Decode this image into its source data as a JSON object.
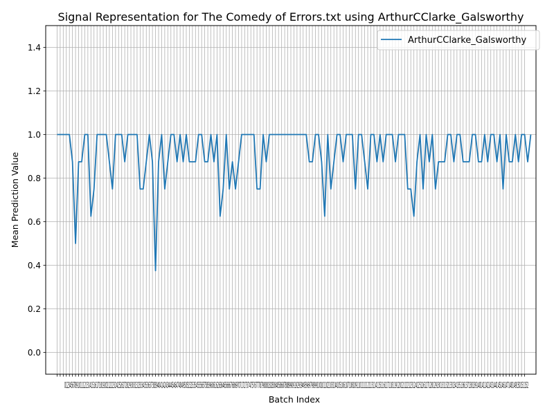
{
  "chart_data": {
    "type": "line",
    "title": "Signal Representation for The Comedy of Errors.txt using ArthurCClarke_Galsworthy",
    "xlabel": "Batch Index",
    "ylabel": "Mean Prediction Value",
    "xlim": [
      -3.7,
      155.7
    ],
    "ylim": [
      -0.1,
      1.5
    ],
    "yticks": [
      0.0,
      0.2,
      0.4,
      0.6,
      0.8,
      1.0,
      1.2,
      1.4
    ],
    "grid": true,
    "legend_position": "upper right",
    "x_tick_label_text": "0123456789101112131415161718192021222324252627282930313233343536373839404142434445464748495051525354555657585960616263646566676869707172737475767778798081828384858687888990919293949596979899100101102103104105106107108109110111112113114115116117118119120121122123124125126127128129130131132133134135136137138139140141142143144145146147148149150151152",
    "x_tick_positions": [
      0,
      1,
      2,
      3,
      4,
      5,
      6,
      7,
      8,
      9,
      10,
      11,
      12,
      13,
      14,
      15,
      16,
      17,
      18,
      19,
      20,
      21,
      22,
      23,
      24,
      25,
      26,
      27,
      28,
      29,
      30,
      31,
      32,
      33,
      34,
      35,
      36,
      37,
      38,
      39,
      40,
      41,
      42,
      43,
      44,
      45,
      46,
      47,
      48,
      49,
      50,
      51,
      52,
      53,
      54,
      55,
      56,
      57,
      58,
      59,
      60,
      61,
      62,
      63,
      64,
      65,
      66,
      67,
      68,
      69,
      70,
      71,
      72,
      73,
      74,
      75,
      76,
      77,
      78,
      79,
      80,
      81,
      82,
      83,
      84,
      85,
      86,
      87,
      88,
      89,
      90,
      91,
      92,
      93,
      94,
      95,
      96,
      97,
      98,
      99,
      100,
      101,
      102,
      103,
      104,
      105,
      106,
      107,
      108,
      109,
      110,
      111,
      112,
      113,
      114,
      115,
      116,
      117,
      118,
      119,
      120,
      121,
      122,
      123,
      124,
      125,
      126,
      127,
      128,
      129,
      130,
      131,
      132,
      133,
      134,
      135,
      136,
      137,
      138,
      139,
      140,
      141,
      142,
      143,
      144,
      145,
      146,
      147,
      148,
      149,
      150,
      151,
      152
    ],
    "series": [
      {
        "name": "ArthurCClarke_Galsworthy",
        "color": "#1f77b4",
        "values": [
          1.0,
          1.0,
          1.0,
          1.0,
          1.0,
          0.875,
          0.5,
          0.875,
          0.875,
          1.0,
          1.0,
          0.625,
          0.75,
          1.0,
          1.0,
          1.0,
          1.0,
          0.875,
          0.75,
          1.0,
          1.0,
          1.0,
          0.875,
          1.0,
          1.0,
          1.0,
          1.0,
          0.75,
          0.75,
          0.875,
          1.0,
          0.875,
          0.375,
          0.875,
          1.0,
          0.75,
          0.875,
          1.0,
          1.0,
          0.875,
          1.0,
          0.875,
          1.0,
          0.875,
          0.875,
          0.875,
          1.0,
          1.0,
          0.875,
          0.875,
          1.0,
          0.875,
          1.0,
          0.625,
          0.75,
          1.0,
          0.75,
          0.875,
          0.75,
          0.875,
          1.0,
          1.0,
          1.0,
          1.0,
          1.0,
          0.75,
          0.75,
          1.0,
          0.875,
          1.0,
          1.0,
          1.0,
          1.0,
          1.0,
          1.0,
          1.0,
          1.0,
          1.0,
          1.0,
          1.0,
          1.0,
          1.0,
          0.875,
          0.875,
          1.0,
          1.0,
          0.875,
          0.625,
          1.0,
          0.75,
          0.875,
          1.0,
          1.0,
          0.875,
          1.0,
          1.0,
          1.0,
          0.75,
          1.0,
          1.0,
          0.875,
          0.75,
          1.0,
          1.0,
          0.875,
          1.0,
          0.875,
          1.0,
          1.0,
          1.0,
          0.875,
          1.0,
          1.0,
          1.0,
          0.75,
          0.75,
          0.625,
          0.875,
          1.0,
          0.75,
          1.0,
          0.875,
          1.0,
          0.75,
          0.875,
          0.875,
          0.875,
          1.0,
          1.0,
          0.875,
          1.0,
          1.0,
          0.875,
          0.875,
          0.875,
          1.0,
          1.0,
          0.875,
          0.875,
          1.0,
          0.875,
          1.0,
          1.0,
          0.875,
          1.0,
          0.75,
          1.0,
          0.875,
          0.875,
          1.0,
          0.875,
          1.0,
          1.0,
          0.875,
          1.0
        ]
      }
    ]
  }
}
